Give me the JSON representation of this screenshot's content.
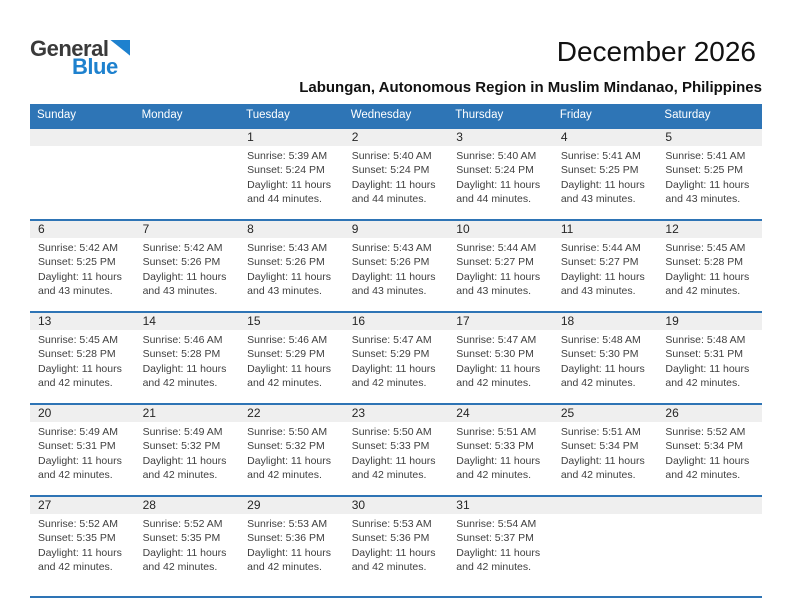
{
  "logo": {
    "part1": "General",
    "part2": "Blue"
  },
  "header": {
    "title": "December 2026",
    "subtitle": "Labungan, Autonomous Region in Muslim Mindanao, Philippines"
  },
  "colors": {
    "header_blue": "#2e75b6",
    "row_border_blue": "#2e74b5",
    "day_band_gray": "#efefef",
    "logo_blue": "#1e81ce"
  },
  "calendar": {
    "weekdays": [
      "Sunday",
      "Monday",
      "Tuesday",
      "Wednesday",
      "Thursday",
      "Friday",
      "Saturday"
    ],
    "weeks": [
      [
        null,
        null,
        {
          "day": "1",
          "lines": [
            "Sunrise: 5:39 AM",
            "Sunset: 5:24 PM",
            "Daylight: 11 hours",
            "and 44 minutes."
          ]
        },
        {
          "day": "2",
          "lines": [
            "Sunrise: 5:40 AM",
            "Sunset: 5:24 PM",
            "Daylight: 11 hours",
            "and 44 minutes."
          ]
        },
        {
          "day": "3",
          "lines": [
            "Sunrise: 5:40 AM",
            "Sunset: 5:24 PM",
            "Daylight: 11 hours",
            "and 44 minutes."
          ]
        },
        {
          "day": "4",
          "lines": [
            "Sunrise: 5:41 AM",
            "Sunset: 5:25 PM",
            "Daylight: 11 hours",
            "and 43 minutes."
          ]
        },
        {
          "day": "5",
          "lines": [
            "Sunrise: 5:41 AM",
            "Sunset: 5:25 PM",
            "Daylight: 11 hours",
            "and 43 minutes."
          ]
        }
      ],
      [
        {
          "day": "6",
          "lines": [
            "Sunrise: 5:42 AM",
            "Sunset: 5:25 PM",
            "Daylight: 11 hours",
            "and 43 minutes."
          ]
        },
        {
          "day": "7",
          "lines": [
            "Sunrise: 5:42 AM",
            "Sunset: 5:26 PM",
            "Daylight: 11 hours",
            "and 43 minutes."
          ]
        },
        {
          "day": "8",
          "lines": [
            "Sunrise: 5:43 AM",
            "Sunset: 5:26 PM",
            "Daylight: 11 hours",
            "and 43 minutes."
          ]
        },
        {
          "day": "9",
          "lines": [
            "Sunrise: 5:43 AM",
            "Sunset: 5:26 PM",
            "Daylight: 11 hours",
            "and 43 minutes."
          ]
        },
        {
          "day": "10",
          "lines": [
            "Sunrise: 5:44 AM",
            "Sunset: 5:27 PM",
            "Daylight: 11 hours",
            "and 43 minutes."
          ]
        },
        {
          "day": "11",
          "lines": [
            "Sunrise: 5:44 AM",
            "Sunset: 5:27 PM",
            "Daylight: 11 hours",
            "and 43 minutes."
          ]
        },
        {
          "day": "12",
          "lines": [
            "Sunrise: 5:45 AM",
            "Sunset: 5:28 PM",
            "Daylight: 11 hours",
            "and 42 minutes."
          ]
        }
      ],
      [
        {
          "day": "13",
          "lines": [
            "Sunrise: 5:45 AM",
            "Sunset: 5:28 PM",
            "Daylight: 11 hours",
            "and 42 minutes."
          ]
        },
        {
          "day": "14",
          "lines": [
            "Sunrise: 5:46 AM",
            "Sunset: 5:28 PM",
            "Daylight: 11 hours",
            "and 42 minutes."
          ]
        },
        {
          "day": "15",
          "lines": [
            "Sunrise: 5:46 AM",
            "Sunset: 5:29 PM",
            "Daylight: 11 hours",
            "and 42 minutes."
          ]
        },
        {
          "day": "16",
          "lines": [
            "Sunrise: 5:47 AM",
            "Sunset: 5:29 PM",
            "Daylight: 11 hours",
            "and 42 minutes."
          ]
        },
        {
          "day": "17",
          "lines": [
            "Sunrise: 5:47 AM",
            "Sunset: 5:30 PM",
            "Daylight: 11 hours",
            "and 42 minutes."
          ]
        },
        {
          "day": "18",
          "lines": [
            "Sunrise: 5:48 AM",
            "Sunset: 5:30 PM",
            "Daylight: 11 hours",
            "and 42 minutes."
          ]
        },
        {
          "day": "19",
          "lines": [
            "Sunrise: 5:48 AM",
            "Sunset: 5:31 PM",
            "Daylight: 11 hours",
            "and 42 minutes."
          ]
        }
      ],
      [
        {
          "day": "20",
          "lines": [
            "Sunrise: 5:49 AM",
            "Sunset: 5:31 PM",
            "Daylight: 11 hours",
            "and 42 minutes."
          ]
        },
        {
          "day": "21",
          "lines": [
            "Sunrise: 5:49 AM",
            "Sunset: 5:32 PM",
            "Daylight: 11 hours",
            "and 42 minutes."
          ]
        },
        {
          "day": "22",
          "lines": [
            "Sunrise: 5:50 AM",
            "Sunset: 5:32 PM",
            "Daylight: 11 hours",
            "and 42 minutes."
          ]
        },
        {
          "day": "23",
          "lines": [
            "Sunrise: 5:50 AM",
            "Sunset: 5:33 PM",
            "Daylight: 11 hours",
            "and 42 minutes."
          ]
        },
        {
          "day": "24",
          "lines": [
            "Sunrise: 5:51 AM",
            "Sunset: 5:33 PM",
            "Daylight: 11 hours",
            "and 42 minutes."
          ]
        },
        {
          "day": "25",
          "lines": [
            "Sunrise: 5:51 AM",
            "Sunset: 5:34 PM",
            "Daylight: 11 hours",
            "and 42 minutes."
          ]
        },
        {
          "day": "26",
          "lines": [
            "Sunrise: 5:52 AM",
            "Sunset: 5:34 PM",
            "Daylight: 11 hours",
            "and 42 minutes."
          ]
        }
      ],
      [
        {
          "day": "27",
          "lines": [
            "Sunrise: 5:52 AM",
            "Sunset: 5:35 PM",
            "Daylight: 11 hours",
            "and 42 minutes."
          ]
        },
        {
          "day": "28",
          "lines": [
            "Sunrise: 5:52 AM",
            "Sunset: 5:35 PM",
            "Daylight: 11 hours",
            "and 42 minutes."
          ]
        },
        {
          "day": "29",
          "lines": [
            "Sunrise: 5:53 AM",
            "Sunset: 5:36 PM",
            "Daylight: 11 hours",
            "and 42 minutes."
          ]
        },
        {
          "day": "30",
          "lines": [
            "Sunrise: 5:53 AM",
            "Sunset: 5:36 PM",
            "Daylight: 11 hours",
            "and 42 minutes."
          ]
        },
        {
          "day": "31",
          "lines": [
            "Sunrise: 5:54 AM",
            "Sunset: 5:37 PM",
            "Daylight: 11 hours",
            "and 42 minutes."
          ]
        },
        null,
        null
      ]
    ]
  }
}
